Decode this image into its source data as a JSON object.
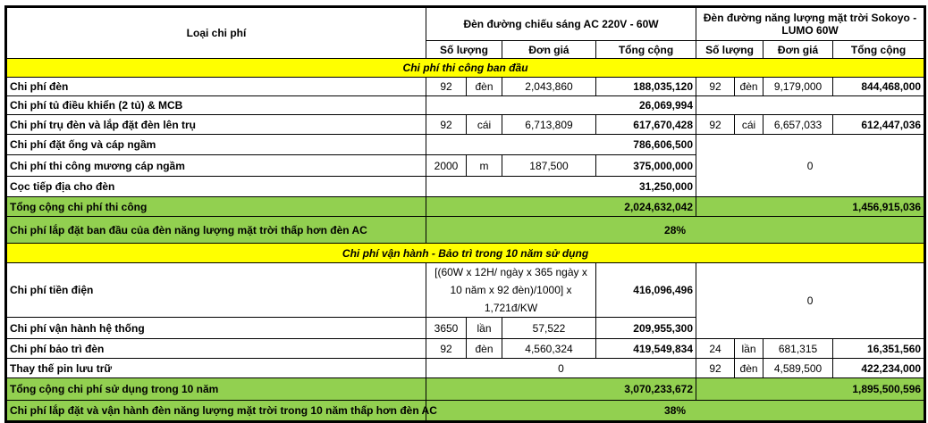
{
  "header": {
    "cost_type": "Loại chi phí",
    "ac_title": "Đèn đường chiếu sáng AC 220V - 60W",
    "solar_title": "Đèn đường năng lượng mặt trời Sokoyo - LUMO 60W",
    "qty": "Số lượng",
    "unit_price": "Đơn giá",
    "total": "Tổng cộng"
  },
  "section1": "Chi phí thi công ban đầu",
  "section2": "Chi phí vận hành - Bảo trì trong 10 năm sử dụng",
  "rows": {
    "den": {
      "label": "Chi phí đèn",
      "ac": [
        "92",
        "đèn",
        "2,043,860",
        "188,035,120"
      ],
      "solar": [
        "92",
        "đèn",
        "9,179,000",
        "844,468,000"
      ]
    },
    "tu": {
      "label": "Chi phí tủ điều khiển (2 tủ) & MCB",
      "ac_total": "26,069,994"
    },
    "tru": {
      "label": "Chi phí trụ đèn và lắp đặt đèn lên trụ",
      "ac": [
        "92",
        "cái",
        "6,713,809",
        "617,670,428"
      ],
      "solar": [
        "92",
        "cái",
        "6,657,033",
        "612,447,036"
      ]
    },
    "ong": {
      "label": "Chi phí đặt ống và cáp ngầm",
      "ac_total": "786,606,500",
      "solar_total": "0"
    },
    "muong": {
      "label": "Chi phí thi công mương cáp ngầm",
      "ac": [
        "2000",
        "m",
        "187,500",
        "375,000,000"
      ]
    },
    "coc": {
      "label": "Cọc tiếp địa cho đèn",
      "ac_total": "31,250,000"
    },
    "tong_thi_cong": {
      "label": "Tổng cộng chi phí thi công",
      "ac_total": "2,024,632,042",
      "solar_total": "1,456,915,036"
    },
    "pct1": {
      "label": "Chi phí lắp đặt ban đầu của đèn năng lượng mặt trời thấp hơn đèn AC",
      "value": "28%"
    },
    "dien": {
      "label": "Chi phí tiền điện",
      "formula": "[(60W x 12H/ ngày x 365 ngày x 10 năm x 92 đèn)/1000] x 1,721đ/KW",
      "ac_total": "416,096,496",
      "solar_total": "0"
    },
    "van_hanh": {
      "label": "Chi phí vận hành hệ thống",
      "ac": [
        "3650",
        "lần",
        "57,522",
        "209,955,300"
      ]
    },
    "bao_tri": {
      "label": "Chi phí bảo trì đèn",
      "ac": [
        "92",
        "đèn",
        "4,560,324",
        "419,549,834"
      ],
      "solar": [
        "24",
        "lần",
        "681,315",
        "16,351,560"
      ]
    },
    "pin": {
      "label": "Thay thế pin lưu trữ",
      "ac_total": "0",
      "solar": [
        "92",
        "đèn",
        "4,589,500",
        "422,234,000"
      ]
    },
    "tong_10": {
      "label": "Tổng cộng chi phí sử dụng trong 10 năm",
      "ac_total": "3,070,233,672",
      "solar_total": "1,895,500,596"
    },
    "pct2": {
      "label": "Chi phí lắp đặt và vận hành đèn năng lượng mặt trời trong 10 năm thấp hơn đèn AC",
      "value": "38%"
    }
  },
  "colors": {
    "section": "#ffff00",
    "total": "#92d050"
  }
}
